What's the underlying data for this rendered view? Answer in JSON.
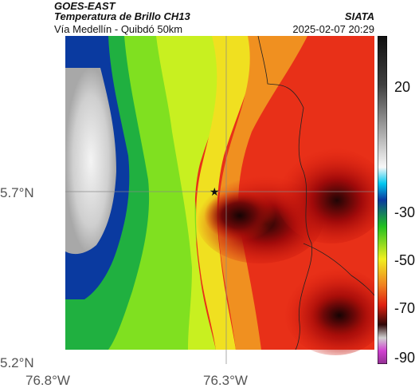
{
  "header": {
    "satellite": "GOES-EAST",
    "product": "Temperatura de Brillo CH13",
    "location": "Vía Medellín - Quibdó 50km",
    "agency": "SIATA",
    "timestamp": "2025-02-07 20:29"
  },
  "map": {
    "lat_labels": [
      "5.7°N",
      "5.2°N"
    ],
    "lon_labels": [
      "76.8°W",
      "76.3°W"
    ],
    "marker": "star",
    "colors": {
      "cold_white": "#f0f0f0",
      "blue": "#0a3aa0",
      "green": "#40e020",
      "yellow": "#f0f020",
      "orange": "#f08020",
      "red": "#e02010",
      "dark": "#300808"
    }
  },
  "colorbar": {
    "ticks": [
      "20",
      "-30",
      "-50",
      "-70",
      "-90"
    ],
    "units": ""
  }
}
